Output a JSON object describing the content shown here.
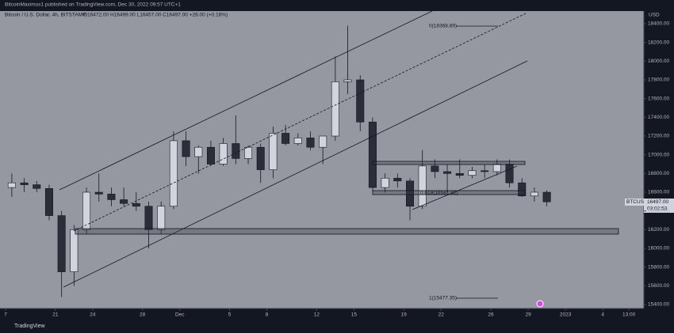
{
  "header": {
    "publisher": "BitcoinMaximus1 published on TradingView.com, Dec 30, 2022 09:57 UTC+1",
    "symbol_info": "Bitcoin / U.S. Dollar, 4h, BITSTAMP",
    "ohlc_info": "O16472.00 H16499.00 L16457.00 C16497.00 +26.00 (+0.16%)",
    "currency": "USD",
    "logo": "TradingView"
  },
  "price_label": {
    "symbol": "BTCUSD",
    "price": "16497.00",
    "countdown": "03:02:53"
  },
  "chart_data": {
    "type": "candlestick",
    "annotations": [
      "0(18368.89)",
      "0.618(16581.92)",
      "1(15477.35)"
    ],
    "up_color": "#d1d4dc",
    "down_color": "#2a2e39",
    "wick_color": "#131722",
    "xlim": [
      -0.45,
      51.3
    ],
    "xticks": [
      {
        "value": 0,
        "label": "7"
      },
      {
        "value": 4,
        "label": "21"
      },
      {
        "value": 7,
        "label": "24"
      },
      {
        "value": 11,
        "label": "28"
      },
      {
        "value": 14,
        "label": "Dec"
      },
      {
        "value": 18,
        "label": "5"
      },
      {
        "value": 21,
        "label": "8"
      },
      {
        "value": 25,
        "label": "12"
      },
      {
        "value": 28,
        "label": "15"
      },
      {
        "value": 32,
        "label": "19"
      },
      {
        "value": 35,
        "label": "22"
      },
      {
        "value": 39,
        "label": "26"
      },
      {
        "value": 42,
        "label": "29"
      },
      {
        "value": 45,
        "label": "2023"
      },
      {
        "value": 48,
        "label": "4"
      },
      {
        "value": 50.1,
        "label": "13:00"
      }
    ],
    "ylim": [
      15358,
      18535
    ],
    "yticks": [
      {
        "value": 15400,
        "label": "15400.00"
      },
      {
        "value": 15600,
        "label": "15600.00"
      },
      {
        "value": 15800,
        "label": "15800.00"
      },
      {
        "value": 16000,
        "label": "16000.00"
      },
      {
        "value": 16200,
        "label": "16200.00"
      },
      {
        "value": 16400,
        "label": "16400.00"
      },
      {
        "value": 16600,
        "label": "16600.00"
      },
      {
        "value": 16800,
        "label": "16800.00"
      },
      {
        "value": 17000,
        "label": "17000.00"
      },
      {
        "value": 17200,
        "label": "17200.00"
      },
      {
        "value": 17400,
        "label": "17400.00"
      },
      {
        "value": 17600,
        "label": "17600.00"
      },
      {
        "value": 17800,
        "label": "17800.00"
      },
      {
        "value": 18000,
        "label": "18000.00"
      },
      {
        "value": 18200,
        "label": "18200.00"
      },
      {
        "value": 18400,
        "label": "18400.00"
      }
    ],
    "x": [
      0.5,
      1.5,
      2.5,
      3.5,
      4.5,
      5.5,
      6.5,
      7.5,
      8.5,
      9.5,
      10.5,
      11.5,
      12.5,
      13.5,
      14.5,
      15.5,
      16.5,
      17.5,
      18.5,
      19.5,
      20.5,
      21.5,
      22.5,
      23.5,
      24.5,
      25.5,
      26.5,
      27.5,
      28.5,
      29.5,
      30.5,
      31.5,
      32.5,
      33.5,
      34.5,
      35.5,
      36.5,
      37.5,
      38.5,
      39.5,
      40.5,
      41.5,
      42.5,
      43.5
    ],
    "open": [
      16650,
      16700,
      16680,
      16640,
      16350,
      15750,
      16200,
      16600,
      16580,
      16520,
      16480,
      16450,
      16200,
      16450,
      17150,
      16980,
      17080,
      16900,
      17120,
      16960,
      17080,
      16840,
      17230,
      17120,
      17180,
      17080,
      17200,
      17780,
      17800,
      17350,
      16650,
      16750,
      16720,
      16450,
      16880,
      16820,
      16800,
      16780,
      16830,
      16820,
      16900,
      16700,
      16560,
      16600
    ],
    "high": [
      16800,
      16750,
      16720,
      16680,
      16400,
      16250,
      16650,
      16800,
      16650,
      16650,
      16600,
      16500,
      16500,
      17250,
      17250,
      17100,
      17150,
      17180,
      17420,
      17100,
      17120,
      17300,
      17320,
      17230,
      17250,
      17200,
      18050,
      18380,
      17850,
      17400,
      16800,
      16800,
      16750,
      17050,
      16950,
      16900,
      16950,
      16870,
      16900,
      16950,
      16950,
      16750,
      16650,
      16620
    ],
    "low": [
      16550,
      16600,
      16600,
      16300,
      15480,
      15600,
      16150,
      16500,
      16450,
      16450,
      16400,
      16000,
      16150,
      16420,
      16880,
      16800,
      16880,
      16880,
      16900,
      16900,
      16700,
      16750,
      17100,
      17100,
      17050,
      16900,
      17150,
      17650,
      17250,
      16600,
      16600,
      16650,
      16300,
      16420,
      16750,
      16600,
      16750,
      16750,
      16750,
      16780,
      16650,
      16550,
      16500,
      16450
    ],
    "close": [
      16700,
      16680,
      16640,
      16350,
      15750,
      16200,
      16600,
      16580,
      16520,
      16480,
      16450,
      16200,
      16450,
      17150,
      16980,
      17080,
      16900,
      17120,
      16960,
      17080,
      16840,
      17230,
      17120,
      17180,
      17080,
      17200,
      17780,
      17800,
      17350,
      16650,
      16750,
      16720,
      16450,
      16880,
      16820,
      16800,
      16780,
      16830,
      16820,
      16900,
      16700,
      16560,
      16600,
      16497
    ]
  }
}
